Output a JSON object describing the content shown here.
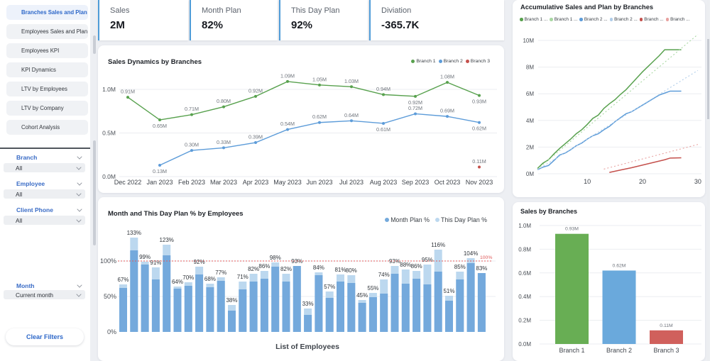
{
  "sidebar": {
    "items": [
      {
        "label": "Branches Sales and Plan",
        "active": true
      },
      {
        "label": "Employees Sales and Plan",
        "active": false
      },
      {
        "label": "Employees KPI",
        "active": false
      },
      {
        "label": "KPI Dynamics",
        "active": false
      },
      {
        "label": "LTV by Employees",
        "active": false
      },
      {
        "label": "LTV by Company",
        "active": false
      },
      {
        "label": "Cohort Analysis",
        "active": false
      }
    ],
    "filters": [
      {
        "label": "Branch",
        "value": "All"
      },
      {
        "label": "Employee",
        "value": "All"
      },
      {
        "label": "Client Phone",
        "value": "All"
      },
      {
        "label": "Month",
        "value": "Current month"
      }
    ],
    "clear_button": "Clear Filters"
  },
  "kpis": [
    {
      "label": "Sales",
      "value": "2M"
    },
    {
      "label": "Month Plan",
      "value": "82%"
    },
    {
      "label": "This Day Plan",
      "value": "92%"
    },
    {
      "label": "Diviation",
      "value": "-365.7K"
    }
  ],
  "chart_data": [
    {
      "id": "sales_dynamics",
      "type": "line",
      "title": "Sales Dynamics by Branches",
      "categories": [
        "Dec 2022",
        "Jan 2023",
        "Feb 2023",
        "Mar 2023",
        "Apr 2023",
        "May 2023",
        "Jun 2023",
        "Jul 2023",
        "Aug 2023",
        "Sep 2023",
        "Oct 2023",
        "Nov 2023"
      ],
      "yticks": [
        {
          "v": 0,
          "t": "0.0M"
        },
        {
          "v": 0.5,
          "t": "0.5M"
        },
        {
          "v": 1.0,
          "t": "1.0M"
        }
      ],
      "ylim": [
        0,
        1.25
      ],
      "series": [
        {
          "name": "Branch 1",
          "color": "#58a14e",
          "values": [
            0.91,
            0.65,
            0.71,
            0.8,
            0.92,
            1.09,
            1.05,
            1.03,
            0.94,
            0.92,
            1.08,
            0.93
          ],
          "labels": [
            "0.91M",
            "0.65M",
            "0.71M",
            "0.80M",
            "0.92M",
            "1.09M",
            "1.05M",
            "1.03M",
            "0.94M",
            "0.92M",
            "1.08M",
            "0.93M"
          ],
          "label_side": [
            "a",
            "b",
            "a",
            "a",
            "a",
            "a",
            "a",
            "a",
            "a",
            "b",
            "a",
            "b"
          ]
        },
        {
          "name": "Branch 2",
          "color": "#5d9cd9",
          "values": [
            null,
            0.13,
            0.3,
            0.33,
            0.39,
            0.54,
            0.62,
            0.64,
            0.61,
            0.72,
            0.69,
            0.62
          ],
          "labels": [
            null,
            "0.13M",
            "0.30M",
            "0.33M",
            "0.39M",
            "0.54M",
            "0.62M",
            "0.64M",
            "0.61M",
            "0.72M",
            "0.69M",
            "0.62M"
          ],
          "label_side": [
            null,
            "b",
            "a",
            "a",
            "a",
            "a",
            "a",
            "a",
            "b",
            "a",
            "a",
            "b"
          ]
        },
        {
          "name": "Branch 3",
          "color": "#c4504c",
          "values": [
            null,
            null,
            null,
            null,
            null,
            null,
            null,
            null,
            null,
            null,
            null,
            0.11
          ],
          "labels": [
            null,
            null,
            null,
            null,
            null,
            null,
            null,
            null,
            null,
            null,
            null,
            "0.11M"
          ],
          "label_side": [
            null,
            null,
            null,
            null,
            null,
            null,
            null,
            null,
            null,
            null,
            null,
            "a"
          ]
        }
      ]
    },
    {
      "id": "employees_plan",
      "type": "bar",
      "title": "Month and This Day Plan % by Employees",
      "xlabel": "List of Employees",
      "yticks": [
        {
          "v": 0,
          "t": "0%"
        },
        {
          "v": 50,
          "t": "50%"
        },
        {
          "v": 100,
          "t": "100%"
        }
      ],
      "ref_line": {
        "value": 100,
        "label": "100%",
        "color": "#e05b5b"
      },
      "series": [
        {
          "name": "Month Plan %",
          "color": "#74a9dc",
          "values": [
            62,
            115,
            95,
            74,
            108,
            61,
            65,
            81,
            63,
            72,
            30,
            60,
            71,
            75,
            92,
            71,
            93,
            24,
            80,
            48,
            71,
            69,
            41,
            49,
            54,
            82,
            68,
            75,
            67,
            85,
            44,
            74,
            97,
            83
          ]
        },
        {
          "name": "This Day Plan %",
          "color": "#bcd8ef",
          "values": [
            67,
            133,
            99,
            91,
            123,
            64,
            70,
            92,
            68,
            77,
            38,
            71,
            82,
            86,
            98,
            82,
            93,
            33,
            84,
            57,
            81,
            80,
            45,
            55,
            74,
            93,
            88,
            86,
            95,
            116,
            51,
            85,
            104,
            83
          ]
        }
      ],
      "bar_labels": [
        "67%",
        "133%",
        "99%",
        "91%",
        "123%",
        "64%",
        "70%",
        "92%",
        "68%",
        "77%",
        "38%",
        "71%",
        "82%",
        "86%",
        "98%",
        "82%",
        "93%",
        "33%",
        "84%",
        "57%",
        "81%",
        "80%",
        "45%",
        "55%",
        "74%",
        "93%",
        "88%",
        "86%",
        "95%",
        "116%",
        "51%",
        "85%",
        "104%",
        "83%"
      ]
    },
    {
      "id": "accumulative",
      "type": "line",
      "title": "Accumulative Sales and Plan by Branches",
      "yticks": [
        {
          "v": 0,
          "t": "0M"
        },
        {
          "v": 2,
          "t": "2M"
        },
        {
          "v": 4,
          "t": "4M"
        },
        {
          "v": 6,
          "t": "6M"
        },
        {
          "v": 8,
          "t": "8M"
        },
        {
          "v": 10,
          "t": "10M"
        }
      ],
      "xticks": [
        10,
        20,
        30
      ],
      "series": [
        {
          "name": "Branch 1 ...",
          "color": "#58a14e",
          "style": "solid",
          "points": [
            [
              1,
              0.4
            ],
            [
              2,
              0.8
            ],
            [
              3,
              1.05
            ],
            [
              4,
              1.5
            ],
            [
              5,
              1.9
            ],
            [
              6,
              2.25
            ],
            [
              7,
              2.6
            ],
            [
              8,
              3.0
            ],
            [
              9,
              3.3
            ],
            [
              10,
              3.7
            ],
            [
              11,
              4.15
            ],
            [
              12,
              4.4
            ],
            [
              13,
              4.9
            ],
            [
              14,
              5.25
            ],
            [
              15,
              5.55
            ],
            [
              16,
              5.95
            ],
            [
              17,
              6.3
            ],
            [
              18,
              6.75
            ],
            [
              19,
              7.2
            ],
            [
              20,
              7.65
            ],
            [
              21,
              8.05
            ],
            [
              22,
              8.45
            ],
            [
              23,
              8.85
            ],
            [
              24,
              9.3
            ],
            [
              27,
              9.3
            ]
          ]
        },
        {
          "name": "Branch 1 ...",
          "color": "#a9d8a3",
          "style": "dotted",
          "points": [
            [
              1,
              0.35
            ],
            [
              30,
              10.45
            ]
          ]
        },
        {
          "name": "Branch 2 ...",
          "color": "#5d9cd9",
          "style": "solid",
          "points": [
            [
              1,
              0.3
            ],
            [
              2,
              0.5
            ],
            [
              3,
              0.62
            ],
            [
              4,
              1.0
            ],
            [
              5,
              1.4
            ],
            [
              6,
              1.55
            ],
            [
              7,
              1.8
            ],
            [
              8,
              2.1
            ],
            [
              9,
              2.3
            ],
            [
              10,
              2.6
            ],
            [
              11,
              2.85
            ],
            [
              12,
              3.0
            ],
            [
              13,
              3.3
            ],
            [
              14,
              3.55
            ],
            [
              15,
              3.9
            ],
            [
              16,
              4.2
            ],
            [
              17,
              4.5
            ],
            [
              18,
              4.65
            ],
            [
              19,
              4.9
            ],
            [
              20,
              5.15
            ],
            [
              21,
              5.4
            ],
            [
              22,
              5.65
            ],
            [
              23,
              5.9
            ],
            [
              24,
              6.05
            ],
            [
              25,
              6.2
            ],
            [
              27,
              6.2
            ]
          ]
        },
        {
          "name": "Branch 2 ...",
          "color": "#b0cde9",
          "style": "dotted",
          "points": [
            [
              1,
              0.3
            ],
            [
              30,
              7.75
            ]
          ]
        },
        {
          "name": "Branch ...",
          "color": "#c4504c",
          "style": "solid",
          "points": [
            [
              14,
              0.1
            ],
            [
              16,
              0.28
            ],
            [
              18,
              0.45
            ],
            [
              20,
              0.65
            ],
            [
              22,
              0.85
            ],
            [
              24,
              1.05
            ],
            [
              25,
              1.18
            ],
            [
              27,
              1.2
            ]
          ]
        },
        {
          "name": "Branch ...",
          "color": "#e8a2a0",
          "style": "dotted",
          "points": [
            [
              13,
              0.35
            ],
            [
              30,
              2.2
            ]
          ]
        }
      ]
    },
    {
      "id": "sales_by_branches",
      "type": "bar",
      "title": "Sales by Branches",
      "categories": [
        "Branch 1",
        "Branch 2",
        "Branch 3"
      ],
      "values": [
        0.93,
        0.62,
        0.115
      ],
      "labels": [
        "0.93M",
        "0.62M",
        "0.11M"
      ],
      "colors": [
        "#68ae54",
        "#6aa9dc",
        "#d0605c"
      ],
      "yticks": [
        {
          "v": 0,
          "t": "0.0M"
        },
        {
          "v": 0.2,
          "t": "0.2M"
        },
        {
          "v": 0.4,
          "t": "0.4M"
        },
        {
          "v": 0.6,
          "t": "0.6M"
        },
        {
          "v": 0.8,
          "t": "0.8M"
        },
        {
          "v": 1.0,
          "t": "1.0M"
        }
      ]
    }
  ]
}
